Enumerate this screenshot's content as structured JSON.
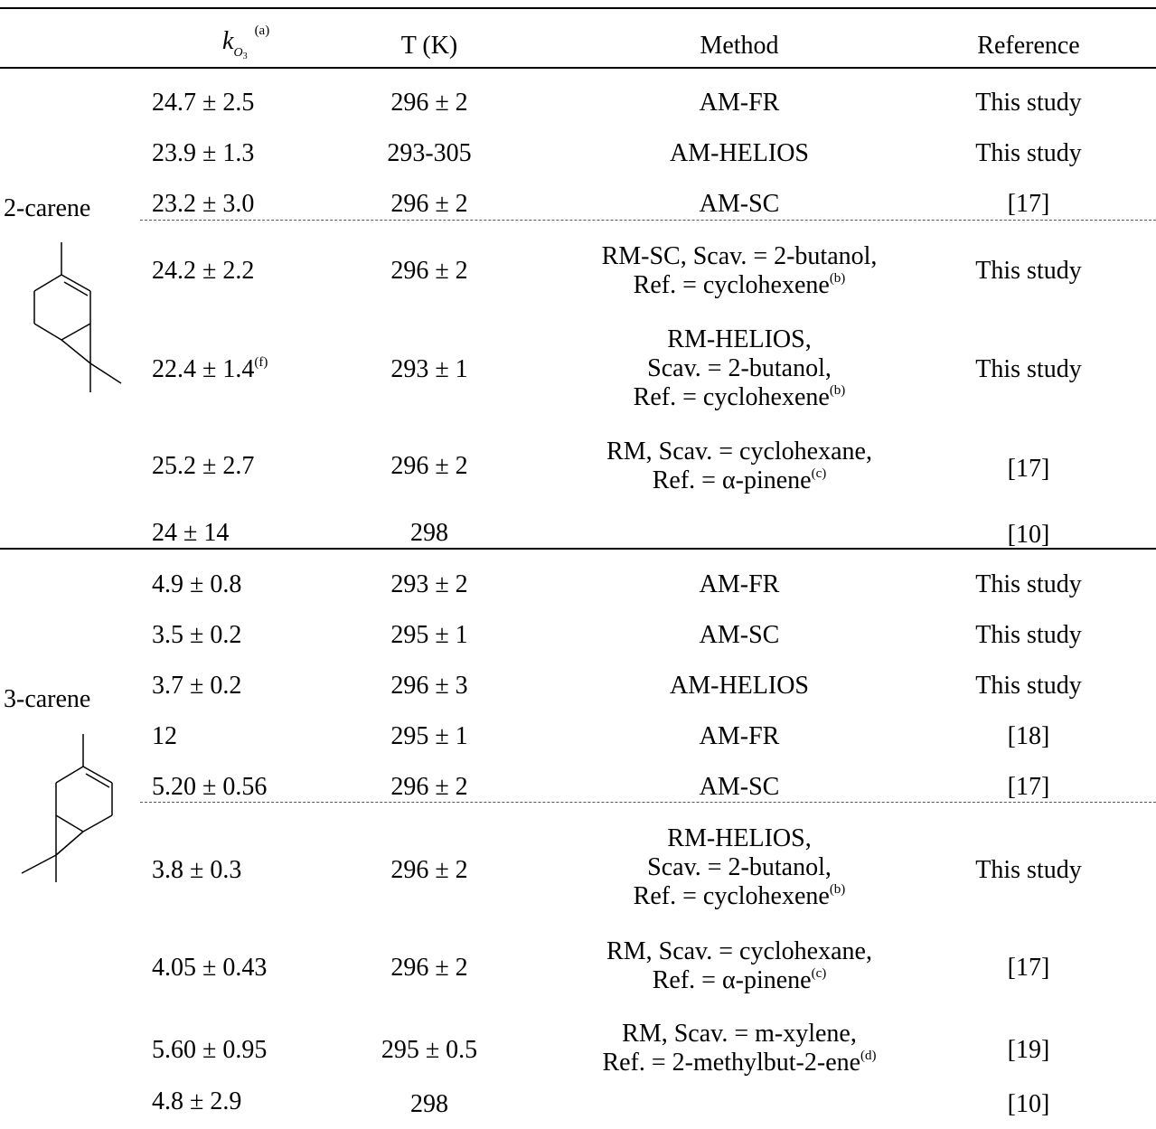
{
  "header": {
    "k_symbol": "k",
    "k_sub": "O",
    "k_sub3": "3",
    "k_sup": "(a)",
    "temperature": "T (K)",
    "method": "Method",
    "reference": "Reference"
  },
  "compounds": [
    {
      "name": "2-carene",
      "structure_icon": "2-carene-structure-icon",
      "rows": [
        {
          "k": "24.7 ± 2.5",
          "T": "296 ± 2",
          "method": [
            "AM-FR"
          ],
          "ref": "This study"
        },
        {
          "k": "23.9 ± 1.3",
          "T": "293-305",
          "method": [
            "AM-HELIOS"
          ],
          "ref": "This study"
        },
        {
          "k": "23.2 ± 3.0",
          "T": "296 ± 2",
          "method": [
            "AM-SC"
          ],
          "ref": "[17]"
        },
        {
          "k": "24.2 ± 2.2",
          "T": "296 ± 2",
          "method": [
            "RM-SC, Scav. = 2-butanol,",
            "Ref. = cyclohexene"
          ],
          "method_sup": "(b)",
          "ref": "This study"
        },
        {
          "k": "22.4 ± 1.4",
          "k_sup": "(f)",
          "T": "293 ± 1",
          "method": [
            "RM-HELIOS,",
            "Scav. = 2-butanol,",
            "Ref. = cyclohexene"
          ],
          "method_sup": "(b)",
          "ref": "This study"
        },
        {
          "k": "25.2 ± 2.7",
          "T": "296 ± 2",
          "method": [
            "RM, Scav. = cyclohexane,",
            "Ref. = α-pinene"
          ],
          "method_sup": "(c)",
          "ref": "[17]"
        },
        {
          "k": "24 ± 14",
          "T": "298",
          "method": [],
          "ref": "[10]"
        }
      ]
    },
    {
      "name": "3-carene",
      "structure_icon": "3-carene-structure-icon",
      "rows": [
        {
          "k": "4.9 ± 0.8",
          "T": "293 ± 2",
          "method": [
            "AM-FR"
          ],
          "ref": "This study"
        },
        {
          "k": "3.5 ± 0.2",
          "T": "295 ± 1",
          "method": [
            "AM-SC"
          ],
          "ref": "This study"
        },
        {
          "k": "3.7 ± 0.2",
          "T": "296 ± 3",
          "method": [
            "AM-HELIOS"
          ],
          "ref": "This study"
        },
        {
          "k": "12",
          "T": "295 ± 1",
          "method": [
            "AM-FR"
          ],
          "ref": "[18]"
        },
        {
          "k": "5.20 ± 0.56",
          "T": "296 ± 2",
          "method": [
            "AM-SC"
          ],
          "ref": "[17]"
        },
        {
          "k": "3.8 ± 0.3",
          "T": "296 ± 2",
          "method": [
            "RM-HELIOS,",
            "Scav. = 2-butanol,",
            "Ref. = cyclohexene"
          ],
          "method_sup": "(b)",
          "ref": "This study"
        },
        {
          "k": "4.05 ± 0.43",
          "T": "296 ± 2",
          "method": [
            "RM, Scav. = cyclohexane,",
            "Ref. = α-pinene"
          ],
          "method_sup": "(c)",
          "ref": "[17]"
        },
        {
          "k": "5.60 ± 0.95",
          "T": "295 ± 0.5",
          "method": [
            "RM, Scav. = m-xylene,",
            "Ref. = 2-methylbut-2-ene"
          ],
          "method_sup": "(d)",
          "ref": "[19]"
        },
        {
          "k": "4.8 ± 2.9",
          "T": "298",
          "method": [],
          "ref": "[10]"
        }
      ]
    }
  ]
}
